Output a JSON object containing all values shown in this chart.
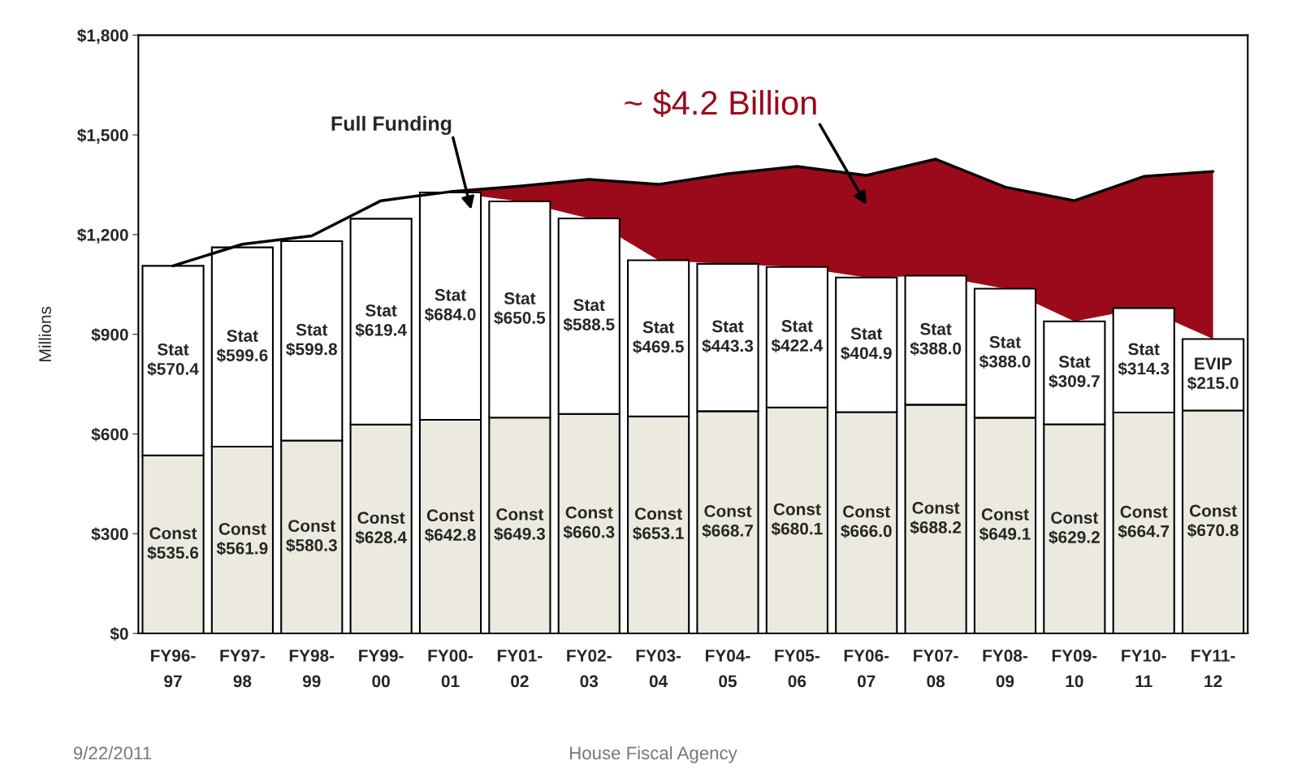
{
  "chart_data": {
    "type": "bar",
    "stacked": true,
    "ylabel": "Millions",
    "categories": [
      "FY96-\n97",
      "FY97-\n98",
      "FY98-\n99",
      "FY99-\n00",
      "FY00-\n01",
      "FY01-\n02",
      "FY02-\n03",
      "FY03-\n04",
      "FY04-\n05",
      "FY05-\n06",
      "FY06-\n07",
      "FY07-\n08",
      "FY08-\n09",
      "FY09-\n10",
      "FY10-\n11",
      "FY11-\n12"
    ],
    "ylim": [
      0,
      1800
    ],
    "yticks": [
      {
        "value": 0,
        "label": "$0"
      },
      {
        "value": 300,
        "label": "$300"
      },
      {
        "value": 600,
        "label": "$600"
      },
      {
        "value": 900,
        "label": "$900"
      },
      {
        "value": 1200,
        "label": "$1,200"
      },
      {
        "value": 1500,
        "label": "$1,500"
      },
      {
        "value": 1800,
        "label": "$1,800"
      }
    ],
    "series": [
      {
        "color": "#eceadf",
        "values": [
          535.6,
          561.9,
          580.3,
          628.4,
          642.8,
          649.3,
          660.3,
          653.1,
          668.7,
          680.1,
          666.0,
          688.2,
          649.1,
          629.2,
          664.7,
          670.8
        ],
        "value_labels": [
          "Const\n$535.6",
          "Const\n$561.9",
          "Const\n$580.3",
          "Const\n$628.4",
          "Const\n$642.8",
          "Const\n$649.3",
          "Const\n$660.3",
          "Const\n$653.1",
          "Const\n$668.7",
          "Const\n$680.1",
          "Const\n$666.0",
          "Const\n$688.2",
          "Const\n$649.1",
          "Const\n$629.2",
          "Const\n$664.7",
          "Const\n$670.8"
        ]
      },
      {
        "color": "#ffffff",
        "values": [
          570.4,
          599.6,
          599.8,
          619.4,
          684.0,
          650.5,
          588.5,
          469.5,
          443.3,
          422.4,
          404.9,
          388.0,
          388.0,
          309.7,
          314.3,
          215.0
        ],
        "value_labels": [
          "Stat\n$570.4",
          "Stat\n$599.6",
          "Stat\n$599.8",
          "Stat\n$619.4",
          "Stat\n$684.0",
          "Stat\n$650.5",
          "Stat\n$588.5",
          "Stat\n$469.5",
          "Stat\n$443.3",
          "Stat\n$422.4",
          "Stat\n$404.9",
          "Stat\n$388.0",
          "Stat\n$388.0",
          "Stat\n$309.7",
          "Stat\n$314.3",
          "EVIP\n$215.0"
        ]
      },
      {
        "type": "line",
        "color": "#000000",
        "values": [
          1106,
          1171,
          1196,
          1302,
          1329,
          1346,
          1366,
          1351,
          1383,
          1405,
          1378,
          1427,
          1343,
          1302,
          1375,
          1390
        ]
      },
      {
        "type": "line",
        "color": "#9b0a1a",
        "values": [
          null,
          null,
          null,
          null,
          null,
          null,
          null,
          null,
          null,
          null,
          null,
          null,
          null,
          null,
          null,
          null
        ],
        "lower": [
          null,
          null,
          null,
          null,
          1326.8,
          1299.8,
          1248.8,
          1122.6,
          1112.0,
          1102.5,
          1070.9,
          1076.2,
          1037.1,
          938.9,
          979.0,
          885.8
        ],
        "upper": [
          null,
          null,
          null,
          null,
          1329,
          1346,
          1366,
          1351,
          1383,
          1405,
          1378,
          1427,
          1343,
          1302,
          1375,
          1390
        ]
      }
    ],
    "annotations": [
      "Full Funding",
      "~ $4.2 Billion",
      "9/22/2011",
      "House Fiscal Agency"
    ],
    "grid": false,
    "legend": false
  }
}
